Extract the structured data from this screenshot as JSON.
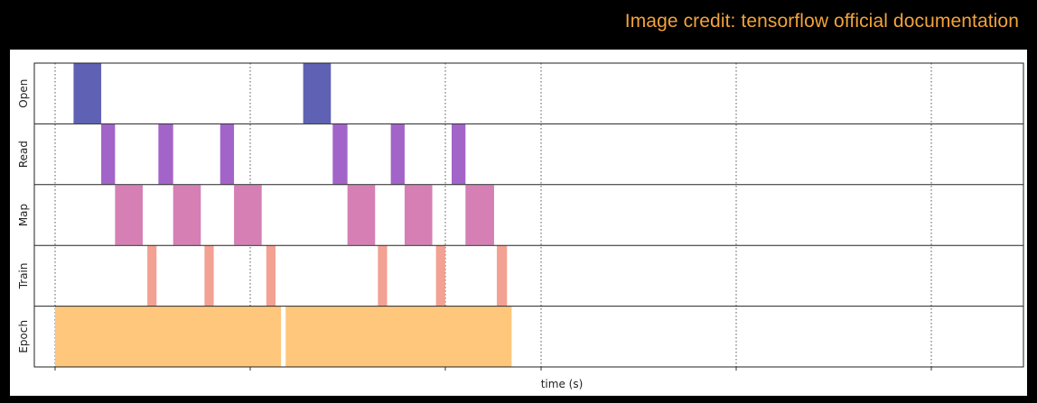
{
  "credit": "Image credit: tensorflow official documentation",
  "chart_data": {
    "type": "timeline",
    "xlabel": "time (s)",
    "xlim": [
      0,
      10.5
    ],
    "grid": true,
    "rows": [
      "Open",
      "Read",
      "Map",
      "Train",
      "Epoch"
    ],
    "colors": {
      "Open": "#5f61b4",
      "Read": "#a264c9",
      "Map": "#d57fb5",
      "Train": "#f2a193",
      "Epoch": "#fec77c"
    },
    "intervals": [
      {
        "row": "Open",
        "start": 0.2,
        "end": 0.5
      },
      {
        "row": "Read",
        "start": 0.5,
        "end": 0.65
      },
      {
        "row": "Map",
        "start": 0.65,
        "end": 0.95
      },
      {
        "row": "Train",
        "start": 1.0,
        "end": 1.1
      },
      {
        "row": "Read",
        "start": 1.12,
        "end": 1.28
      },
      {
        "row": "Map",
        "start": 1.28,
        "end": 1.58
      },
      {
        "row": "Train",
        "start": 1.62,
        "end": 1.72
      },
      {
        "row": "Read",
        "start": 1.79,
        "end": 1.94
      },
      {
        "row": "Map",
        "start": 1.94,
        "end": 2.24
      },
      {
        "row": "Train",
        "start": 2.29,
        "end": 2.39
      },
      {
        "row": "Open",
        "start": 2.69,
        "end": 2.99
      },
      {
        "row": "Read",
        "start": 3.01,
        "end": 3.17
      },
      {
        "row": "Map",
        "start": 3.17,
        "end": 3.47
      },
      {
        "row": "Train",
        "start": 3.5,
        "end": 3.6
      },
      {
        "row": "Read",
        "start": 3.64,
        "end": 3.79
      },
      {
        "row": "Map",
        "start": 3.79,
        "end": 4.09
      },
      {
        "row": "Train",
        "start": 4.13,
        "end": 4.23
      },
      {
        "row": "Read",
        "start": 4.3,
        "end": 4.45
      },
      {
        "row": "Map",
        "start": 4.45,
        "end": 4.76
      },
      {
        "row": "Train",
        "start": 4.79,
        "end": 4.9
      },
      {
        "row": "Epoch",
        "start": 0.0,
        "end": 2.45
      },
      {
        "row": "Epoch",
        "start": 2.5,
        "end": 4.95
      }
    ]
  }
}
